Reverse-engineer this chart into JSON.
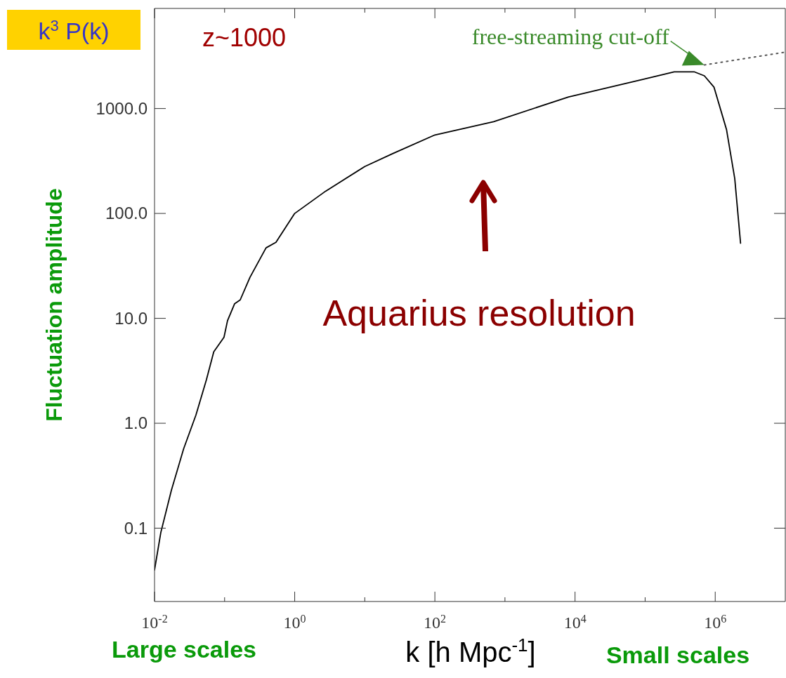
{
  "chart_data": {
    "type": "line",
    "title": "k$^{3}$ P(k)",
    "xlabel": "k [h Mpc$^{-1}$]",
    "ylabel": "Fluctuation amplitude",
    "annotations": [
      "z~1000",
      {
        "text": "free-streaming cut-off",
        "x": 700000,
        "y": 2600
      },
      "Aquarius resolution",
      "Large scales",
      "Small scales"
    ],
    "log": "xy",
    "marker": "none",
    "xlim": [
      0.01,
      10000000
    ],
    "ylim": [
      0.02,
      9000
    ],
    "xticks": [
      {
        "value": 0.01,
        "label": "10$^{-2}$"
      },
      {
        "value": 0.1,
        "label": null
      },
      {
        "value": 1,
        "label": "10$^{0}$"
      },
      {
        "value": 10,
        "label": null
      },
      {
        "value": 100,
        "label": "10$^{2}$"
      },
      {
        "value": 1000,
        "label": null
      },
      {
        "value": 10000,
        "label": "10$^{4}$"
      },
      {
        "value": 100000,
        "label": null
      },
      {
        "value": 1000000,
        "label": "10$^{6}$"
      }
    ],
    "yticks": [
      {
        "value": 0.1,
        "label": "0.1"
      },
      {
        "value": 1,
        "label": "1.0"
      },
      {
        "value": 10,
        "label": "10.0"
      },
      {
        "value": 100,
        "label": "100.0"
      },
      {
        "value": 1000,
        "label": "1000.0"
      }
    ],
    "x": [
      0.01,
      0.0123,
      0.0174,
      0.026,
      0.039,
      0.055,
      0.07,
      0.098,
      0.11,
      0.139,
      0.167,
      0.23,
      0.39,
      0.54,
      1.0,
      2.76,
      10,
      25,
      100,
      690,
      8100,
      95000,
      260000,
      500000,
      700000,
      960000,
      1450000,
      1900000,
      2300000
    ],
    "series": [
      {
        "color": "#000000",
        "line_style": "solid",
        "values": [
          0.04,
          0.091,
          0.23,
          0.57,
          1.2,
          2.6,
          4.8,
          6.6,
          9.5,
          13.8,
          15,
          24.6,
          47,
          53,
          100,
          163,
          280,
          372,
          560,
          750,
          1290,
          1900,
          2240,
          2240,
          2050,
          1600,
          630,
          215,
          52
        ]
      },
      {
        "type": "line",
        "color": "#555555",
        "line_style": "dotted",
        "x": [
          700000,
          10000000
        ],
        "values": [
          2600,
          3450
        ]
      }
    ]
  }
}
